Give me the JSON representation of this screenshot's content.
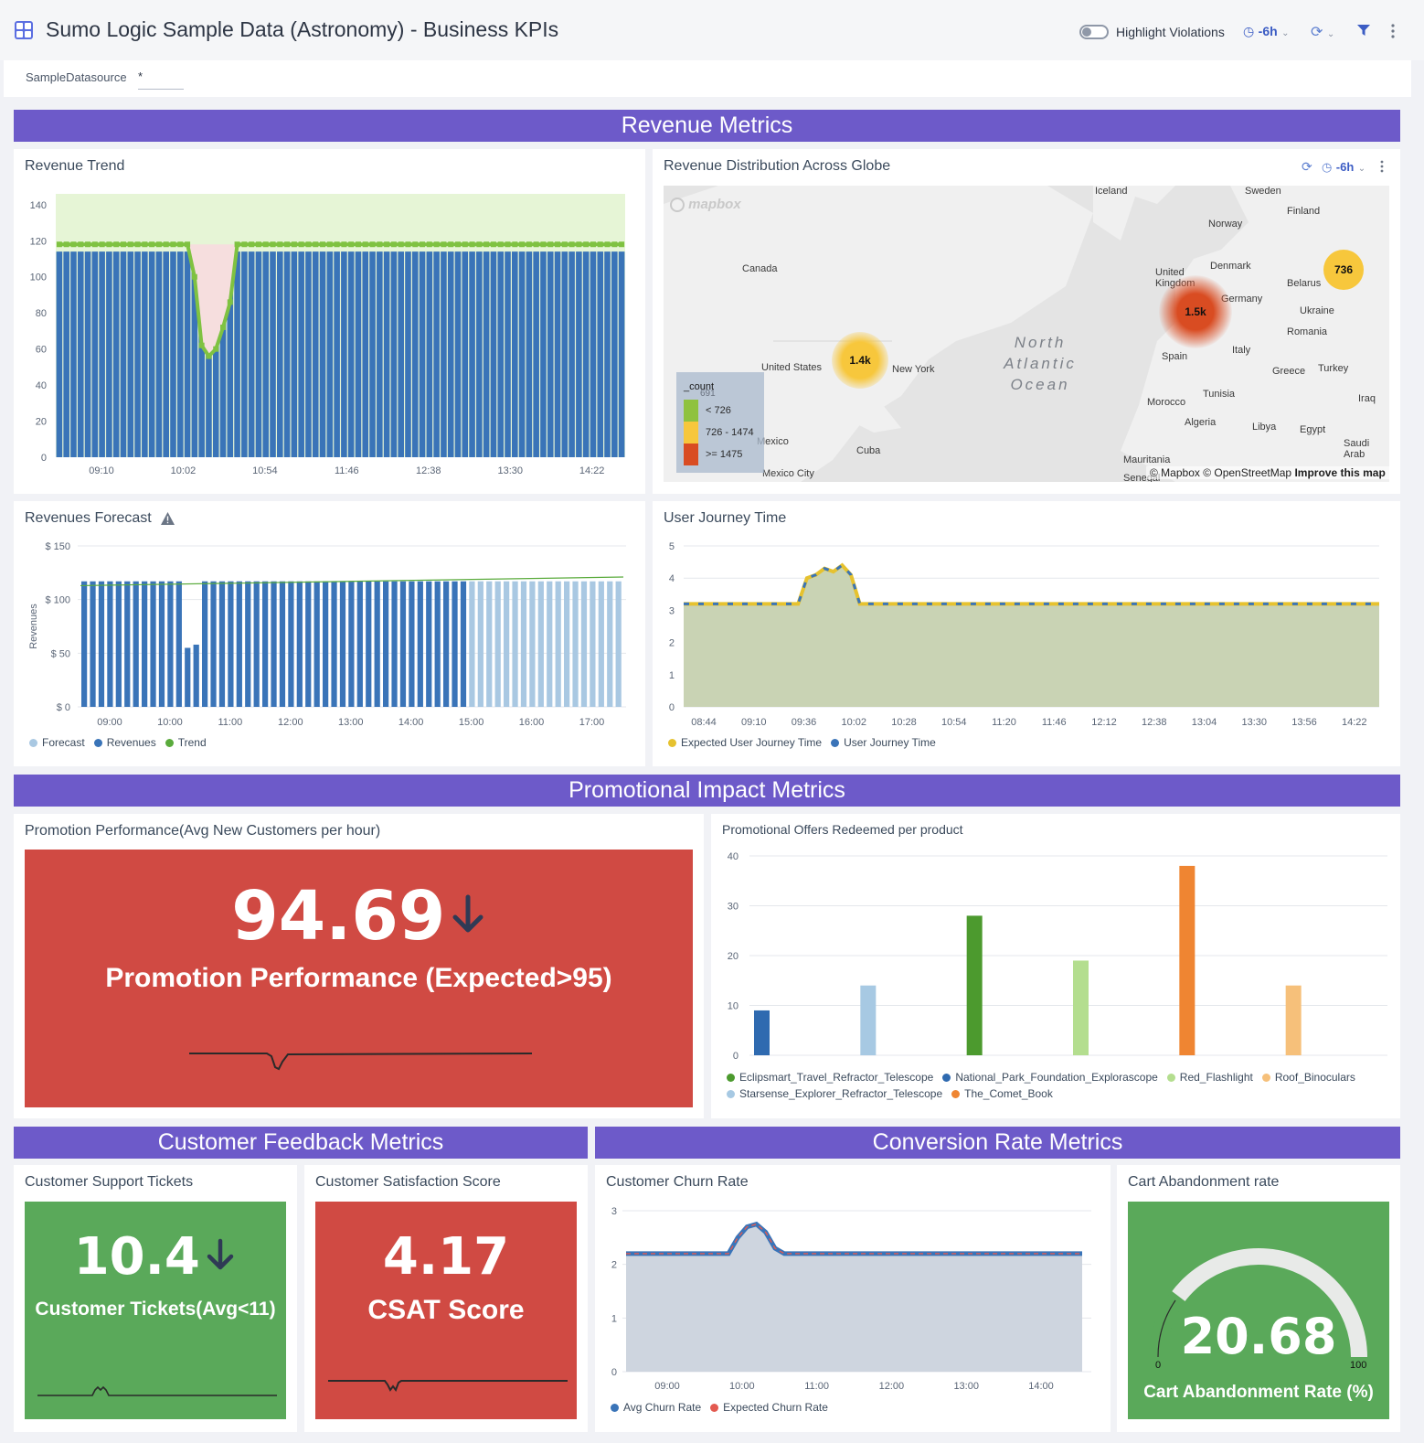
{
  "header": {
    "title": "Sumo Logic Sample Data (Astronomy) - Business KPIs",
    "highlight_label": "Highlight Violations",
    "time_range": "-6h"
  },
  "filter": {
    "label": "SampleDatasource",
    "value": "*"
  },
  "sections": {
    "revenue": "Revenue Metrics",
    "promo": "Promotional Impact Metrics",
    "feedback": "Customer Feedback Metrics",
    "conversion": "Conversion Rate Metrics"
  },
  "panels": {
    "revenue_trend": "Revenue Trend",
    "globe": "Revenue Distribution Across Globe",
    "forecast": "Revenues Forecast",
    "journey": "User Journey Time",
    "promo_perf": "Promotion Performance(Avg New Customers per hour)",
    "offers": "Promotional Offers Redeemed per product",
    "tickets": "Customer Support Tickets",
    "csat": "Customer Satisfaction Score",
    "churn": "Customer Churn Rate",
    "cart": "Cart Abandonment rate"
  },
  "globe_map": {
    "time_range": "-6h",
    "labels": [
      "Iceland",
      "Sweden",
      "Finland",
      "Norway",
      "Canada",
      "Denmark",
      "United Kingdom",
      "Germany",
      "Belarus",
      "Ukraine",
      "Romania",
      "Italy",
      "Spain",
      "Greece",
      "Turkey",
      "Tunisia",
      "Iraq",
      "Morocco",
      "Algeria",
      "Libya",
      "Egypt",
      "Saudi Arab",
      "Mauritania",
      "Senegal",
      "United States",
      "New York",
      "Mexico",
      "Cuba",
      "Mexico City"
    ],
    "ocean": [
      "North",
      "Atlantic",
      "Ocean"
    ],
    "logo": "mapbox",
    "clusters": [
      "1.4k",
      "1.5k",
      "736"
    ],
    "legend_title": "_count",
    "legend": [
      "< 726",
      "726 - 1474",
      ">= 1475"
    ],
    "hidden_value": "691",
    "attribution": "© Mapbox © OpenStreetMap",
    "improve": "Improve this map",
    "colors": {
      "low": "#8fc23f",
      "mid": "#f7c73c",
      "high": "#d94c22"
    }
  },
  "tiles": {
    "promo_value": "94.69",
    "promo_label": "Promotion Performance (Expected>95)",
    "tickets_value": "10.4",
    "tickets_label": "Customer Tickets(Avg<11)",
    "csat_value": "4.17",
    "csat_label": "CSAT Score",
    "cart_value": "20.68",
    "cart_label": "Cart Abandonment Rate (%)",
    "cart_min": "0",
    "cart_max": "100",
    "colors": {
      "red": "#d04a43",
      "green": "#5aa95a"
    }
  },
  "chart_data": [
    {
      "id": "revenue_trend",
      "type": "bar",
      "title": "Revenue Trend",
      "x_ticks": [
        "09:10",
        "10:02",
        "10:54",
        "11:46",
        "12:38",
        "13:30",
        "14:22"
      ],
      "y_ticks": [
        0,
        20,
        40,
        60,
        80,
        100,
        120,
        140
      ],
      "ylim": [
        0,
        146
      ],
      "values": [
        114,
        114,
        114,
        114,
        114,
        114,
        114,
        114,
        114,
        114,
        114,
        114,
        114,
        114,
        114,
        114,
        114,
        114,
        114,
        114,
        114,
        114,
        114,
        114,
        114,
        114,
        114,
        114,
        114,
        114,
        114,
        114,
        114,
        114,
        114,
        114,
        114,
        114,
        114,
        114,
        114,
        114,
        114,
        114,
        114,
        114,
        114,
        114,
        114,
        114,
        114,
        114,
        114,
        114,
        114,
        114,
        114,
        114,
        114,
        114,
        114,
        114,
        114,
        114,
        114,
        114,
        114,
        114,
        114,
        114,
        114,
        114,
        114,
        114,
        114,
        114,
        114,
        114,
        114,
        114
      ],
      "threshold_line": [
        118,
        118,
        118,
        118,
        118,
        118,
        118,
        118,
        118,
        118,
        118,
        118,
        118,
        118,
        118,
        118,
        118,
        118,
        118,
        118,
        118,
        118,
        118,
        118,
        118,
        118,
        118,
        118,
        118,
        118,
        118,
        118,
        118,
        118,
        118,
        118,
        118,
        118,
        118,
        118,
        118,
        118,
        118,
        118,
        118,
        118,
        118,
        118,
        118,
        118,
        118,
        118,
        118,
        118,
        118,
        118,
        118,
        118,
        118,
        118,
        118,
        118,
        118,
        118,
        118,
        118,
        118,
        118,
        118,
        118,
        118,
        118,
        118,
        118,
        118,
        118,
        118,
        118,
        118,
        118
      ],
      "dip_line": [
        118,
        118,
        118,
        118,
        118,
        118,
        118,
        118,
        118,
        118,
        118,
        118,
        118,
        118,
        118,
        118,
        118,
        118,
        118,
        100,
        62,
        56,
        60,
        72,
        86,
        118,
        118,
        118,
        118,
        118,
        118,
        118,
        118,
        118,
        118,
        118,
        118,
        118,
        118,
        118,
        118,
        118,
        118,
        118,
        118,
        118,
        118,
        118,
        118,
        118,
        118,
        118,
        118,
        118,
        118,
        118,
        118,
        118,
        118,
        118,
        118,
        118,
        118,
        118,
        118,
        118,
        118,
        118,
        118,
        118,
        118,
        118,
        118,
        118,
        118,
        118,
        118,
        118,
        118,
        118
      ],
      "colors": {
        "bar": "#3a74b8",
        "band": "#e6f5d6",
        "line": "#7fc241",
        "dip": "#f6dede"
      }
    },
    {
      "id": "forecast",
      "type": "bar",
      "title": "Revenues Forecast",
      "ylabel": "Revenues",
      "x_ticks": [
        "09:00",
        "10:00",
        "11:00",
        "12:00",
        "13:00",
        "14:00",
        "15:00",
        "16:00",
        "17:00"
      ],
      "y_ticks": [
        "$ 0",
        "$ 50",
        "$ 100",
        "$ 150"
      ],
      "ylim": [
        0,
        150
      ],
      "series": [
        {
          "name": "Revenues",
          "values": [
            117,
            117,
            117,
            117,
            117,
            117,
            117,
            117,
            117,
            117,
            117,
            117,
            55,
            58,
            117,
            117,
            117,
            117,
            117,
            117,
            117,
            117,
            117,
            117,
            117,
            117,
            117,
            117,
            117,
            117,
            117,
            117,
            117,
            117,
            117,
            117,
            117,
            117,
            117,
            117,
            117,
            117,
            117,
            117,
            117
          ],
          "color": "#3a74b8"
        },
        {
          "name": "Forecast",
          "values": [
            117,
            117,
            117,
            117,
            117,
            117,
            117,
            117,
            117,
            117,
            117,
            117,
            117,
            117,
            117,
            117,
            117,
            117
          ],
          "color": "#a9c8e2"
        },
        {
          "name": "Trend",
          "values": [
            113,
            121
          ],
          "color": "#5aab3c"
        }
      ],
      "legend": [
        "Forecast",
        "Revenues",
        "Trend"
      ]
    },
    {
      "id": "journey",
      "type": "area",
      "title": "User Journey Time",
      "x_ticks": [
        "08:44",
        "09:10",
        "09:36",
        "10:02",
        "10:28",
        "10:54",
        "11:20",
        "11:46",
        "12:12",
        "12:38",
        "13:04",
        "13:30",
        "13:56",
        "14:22"
      ],
      "y_ticks": [
        0,
        1,
        2,
        3,
        4,
        5
      ],
      "ylim": [
        0,
        5
      ],
      "values": [
        3.2,
        3.2,
        3.2,
        3.2,
        3.2,
        3.2,
        3.2,
        3.2,
        3.2,
        3.2,
        3.2,
        3.2,
        3.2,
        3.2,
        3.2,
        3.2,
        3.2,
        3.2,
        3.2,
        3.2,
        3.2,
        3.2,
        3.2,
        3.2,
        3.2,
        3.2,
        3.2,
        3.2,
        3.2,
        3.2,
        3.2,
        3.2,
        3.2,
        3.2,
        3.2,
        3.2,
        3.2,
        3.2,
        3.2,
        3.2,
        3.2,
        3.2,
        3.2,
        3.2,
        3.2,
        3.2,
        3.2,
        3.2,
        3.2,
        3.2,
        3.2,
        3.2,
        3.2,
        3.2,
        3.2,
        3.2,
        3.2,
        3.2,
        3.2,
        3.2,
        3.2,
        3.2,
        3.2,
        3.2,
        3.2,
        3.2,
        3.2,
        3.2,
        3.2,
        3.2,
        3.2,
        3.2,
        3.2,
        3.2,
        3.2,
        3.2,
        3.2,
        3.2,
        3.2,
        3.2
      ],
      "spike": [
        4.0,
        4.1,
        4.3,
        4.2,
        4.4,
        4.1,
        3.2
      ],
      "legend": [
        "Expected User Journey Time",
        "User Journey Time"
      ],
      "colors": {
        "expected": "#e6c22f",
        "actual": "#3a74b8",
        "fill": "#c9d3b4"
      }
    },
    {
      "id": "offers",
      "type": "bar",
      "title": "Promotional Offers Redeemed per product",
      "y_ticks": [
        0,
        10,
        20,
        30,
        40
      ],
      "ylim": [
        0,
        40
      ],
      "categories": [
        "National_Park_Foundation_Explorascope",
        "Starsense_Explorer_Refractor_Telescope",
        "Eclipsmart_Travel_Refractor_Telescope",
        "Red_Flashlight",
        "The_Comet_Book",
        "Roof_Binoculars"
      ],
      "values": [
        9,
        14,
        28,
        19,
        38,
        14
      ],
      "colors": [
        "#2f6ab0",
        "#a7c9e3",
        "#4c9a2e",
        "#b4de8f",
        "#ef8532",
        "#f6c07a"
      ],
      "legend": [
        {
          "name": "Eclipsmart_Travel_Refractor_Telescope",
          "color": "#4c9a2e"
        },
        {
          "name": "National_Park_Foundation_Explorascope",
          "color": "#2f6ab0"
        },
        {
          "name": "Red_Flashlight",
          "color": "#b4de8f"
        },
        {
          "name": "Roof_Binoculars",
          "color": "#f6c07a"
        },
        {
          "name": "Starsense_Explorer_Refractor_Telescope",
          "color": "#a7c9e3"
        },
        {
          "name": "The_Comet_Book",
          "color": "#ef8532"
        }
      ]
    },
    {
      "id": "churn",
      "type": "area",
      "title": "Customer Churn Rate",
      "x_ticks": [
        "09:00",
        "10:00",
        "11:00",
        "12:00",
        "13:00",
        "14:00"
      ],
      "y_ticks": [
        0,
        1,
        2,
        3
      ],
      "ylim": [
        0,
        3
      ],
      "values": [
        2.2,
        2.2,
        2.2,
        2.2,
        2.2,
        2.2,
        2.2,
        2.2,
        2.2,
        2.2,
        2.2,
        2.2,
        2.2,
        2.2,
        2.2,
        2.2,
        2.2,
        2.2,
        2.2,
        2.2,
        2.2,
        2.2,
        2.2,
        2.2,
        2.2,
        2.2,
        2.2,
        2.2,
        2.2,
        2.2,
        2.2,
        2.2,
        2.2,
        2.2,
        2.2,
        2.2,
        2.2,
        2.2,
        2.2,
        2.2,
        2.2,
        2.2,
        2.2,
        2.2,
        2.2,
        2.2,
        2.2,
        2.2,
        2.2,
        2.2
      ],
      "spike": [
        2.5,
        2.7,
        2.75,
        2.6,
        2.3
      ],
      "legend": [
        "Avg Churn Rate",
        "Expected Churn Rate"
      ],
      "colors": {
        "avg": "#3a74b8",
        "expected": "#e35a50",
        "fill": "#ced5df"
      }
    }
  ]
}
